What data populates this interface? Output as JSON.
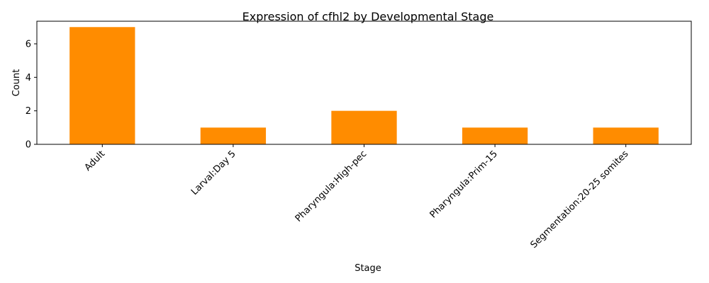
{
  "chart_data": {
    "type": "bar",
    "title": "Expression of cfhl2 by Developmental Stage",
    "xlabel": "Stage",
    "ylabel": "Count",
    "categories": [
      "Adult",
      "Larval:Day 5",
      "Pharyngula:High-pec",
      "Pharyngula:Prim-15",
      "Segmentation:20-25 somites"
    ],
    "values": [
      7,
      1,
      2,
      1,
      1
    ],
    "ylim": [
      0,
      7.35
    ],
    "yticks": [
      0,
      2,
      4,
      6
    ],
    "bar_color": "#ff8c00",
    "grid": false,
    "legend": "none"
  }
}
